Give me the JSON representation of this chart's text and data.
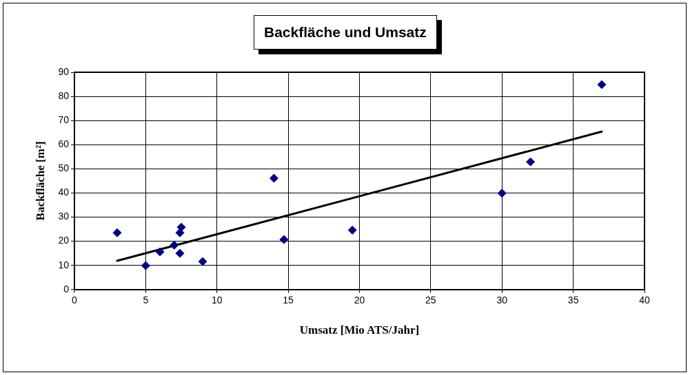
{
  "chart_data": {
    "type": "scatter",
    "title": "Backfläche und Umsatz",
    "xlabel": "Umsatz [Mio ATS/Jahr]",
    "ylabel": "Backfläche [m²]",
    "xlim": [
      0,
      40
    ],
    "xticks": [
      0,
      5,
      10,
      15,
      20,
      25,
      30,
      35,
      40
    ],
    "ylim": [
      0,
      90
    ],
    "yticks": [
      0,
      10,
      20,
      30,
      40,
      50,
      60,
      70,
      80,
      90
    ],
    "grid": true,
    "marker": "diamond",
    "series": [
      {
        "color": "#000080",
        "x": [
          3.0,
          5.0,
          6.0,
          7.0,
          7.4,
          7.5,
          7.4,
          9.0,
          14.0,
          14.7,
          19.5,
          30.0,
          32.0,
          37.0
        ],
        "values": [
          23.5,
          9.9,
          15.6,
          18.4,
          23.5,
          25.8,
          15.0,
          11.6,
          46.1,
          20.7,
          24.6,
          39.9,
          52.9,
          84.9
        ]
      },
      {
        "type": "line",
        "color": "#000000",
        "marker": "none",
        "x": [
          3,
          37
        ],
        "values": [
          11.9,
          65.4
        ]
      }
    ]
  }
}
